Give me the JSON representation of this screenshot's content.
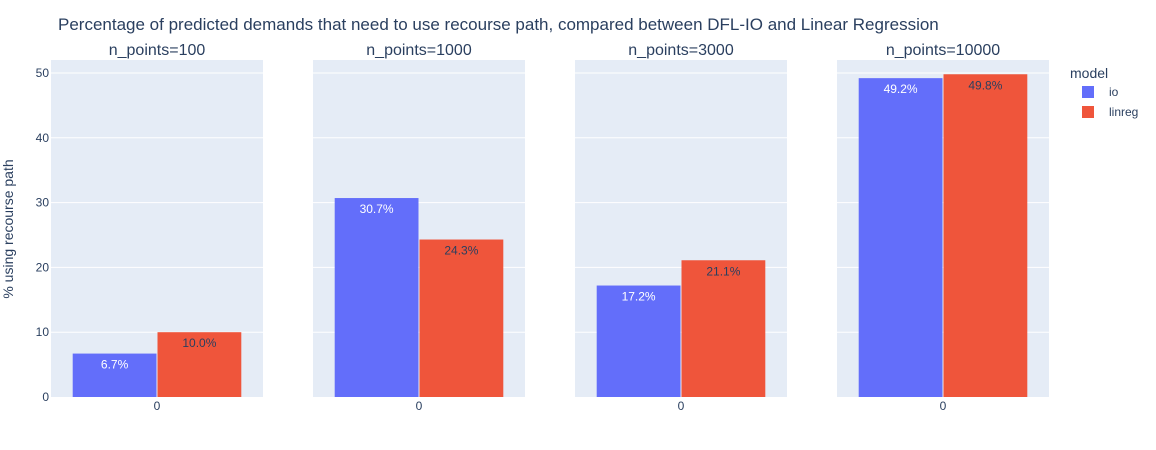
{
  "chart_data": {
    "type": "bar",
    "title": "Percentage of predicted demands that need to use recourse path, compared between DFL-IO and Linear Regression",
    "ylabel": "% using recourse path",
    "ylim": [
      0,
      52
    ],
    "yticks": [
      0,
      10,
      20,
      30,
      40,
      50
    ],
    "grid": true,
    "legend": {
      "title": "model",
      "placement": "right",
      "entries": [
        {
          "name": "io",
          "color": "#636efa"
        },
        {
          "name": "linreg",
          "color": "#ef553b"
        }
      ]
    },
    "facets": [
      {
        "title": "n_points=100",
        "category": "0",
        "series": [
          {
            "name": "io",
            "value": 6.7,
            "label": "6.7%"
          },
          {
            "name": "linreg",
            "value": 10.0,
            "label": "10.0%"
          }
        ]
      },
      {
        "title": "n_points=1000",
        "category": "0",
        "series": [
          {
            "name": "io",
            "value": 30.7,
            "label": "30.7%"
          },
          {
            "name": "linreg",
            "value": 24.3,
            "label": "24.3%"
          }
        ]
      },
      {
        "title": "n_points=3000",
        "category": "0",
        "series": [
          {
            "name": "io",
            "value": 17.2,
            "label": "17.2%"
          },
          {
            "name": "linreg",
            "value": 21.1,
            "label": "21.1%"
          }
        ]
      },
      {
        "title": "n_points=10000",
        "category": "0",
        "series": [
          {
            "name": "io",
            "value": 49.2,
            "label": "49.2%"
          },
          {
            "name": "linreg",
            "value": 49.8,
            "label": "49.8%"
          }
        ]
      }
    ]
  }
}
